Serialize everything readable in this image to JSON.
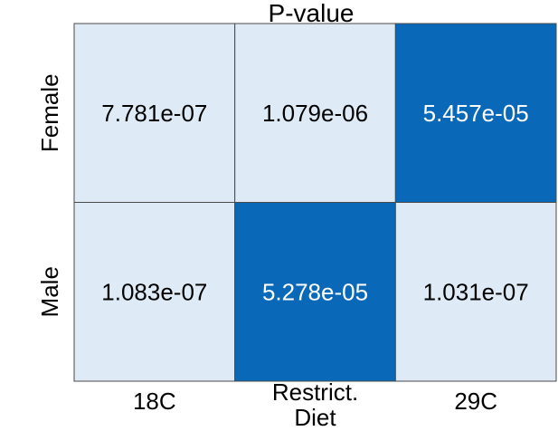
{
  "chart_data": {
    "type": "heatmap",
    "title": "P-value",
    "xlabel": "",
    "ylabel": "",
    "x_categories": [
      [
        "18C"
      ],
      [
        "Restrict.",
        "Diet"
      ],
      [
        "29C"
      ]
    ],
    "y_categories": [
      "Female",
      "Male"
    ],
    "cells": [
      [
        "7.781e-07",
        "1.079e-06",
        "5.457e-05"
      ],
      [
        "1.083e-07",
        "5.278e-05",
        "1.031e-07"
      ]
    ],
    "values": [
      [
        7.781e-07,
        1.079e-06,
        5.457e-05
      ],
      [
        1.083e-07,
        5.278e-05,
        1.031e-07
      ]
    ],
    "colors": {
      "low": "#deebf7",
      "high": "#0969b8",
      "text_on_low": "#000000",
      "text_on_high": "#ffffff",
      "grid": "#4a4a4a"
    },
    "legend": "none",
    "grid": true
  }
}
